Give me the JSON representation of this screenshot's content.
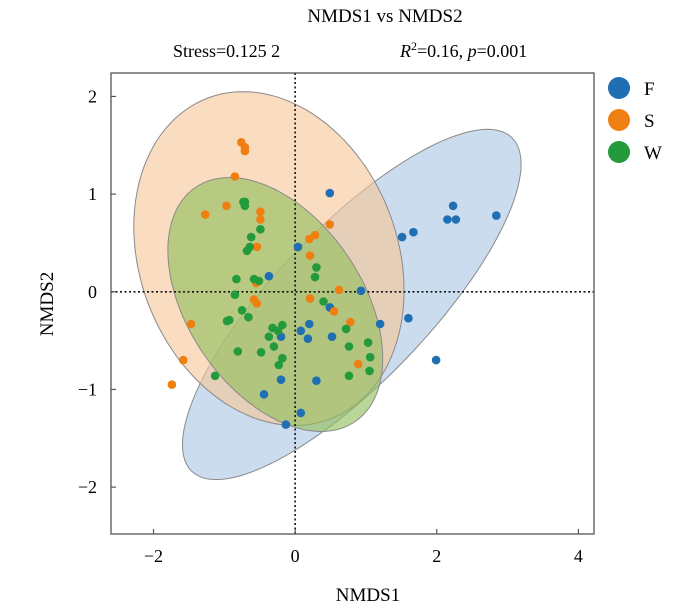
{
  "chart_data": {
    "type": "scatter",
    "title": "NMDS1 vs NMDS2",
    "subtitle": {
      "stress_label": "Stress=0.125 2",
      "stats_r_symbol": "R",
      "stats_r_sup": "2",
      "stats_r_value": "=0.16, ",
      "stats_p_symbol": "p",
      "stats_p_value": "=0.001"
    },
    "xlabel": "NMDS1",
    "ylabel": "NMDS2",
    "xlim": [
      -2.6,
      4.22
    ],
    "ylim": [
      -2.48,
      2.24
    ],
    "xticks": [
      -2,
      0,
      2,
      4
    ],
    "yticks": [
      -2,
      -1,
      0,
      1,
      2
    ],
    "xtick_labels": [
      "−2",
      "0",
      "2",
      "4"
    ],
    "ytick_labels": [
      "−2",
      "−1",
      "0",
      "1",
      "2"
    ],
    "reference_lines": {
      "x": 0,
      "y": 0,
      "style": "dotted"
    },
    "grid": false,
    "legend_position": "right-top",
    "series": [
      {
        "name": "F",
        "color": "#1f6fb2",
        "ellipse": {
          "cx": 0.8,
          "cy": -0.13,
          "a": 2.85,
          "b": 0.9,
          "angle_deg": 35,
          "fill": "#a9c6e2"
        },
        "points": [
          [
            0.49,
            1.01
          ],
          [
            2.23,
            0.88
          ],
          [
            2.15,
            0.74
          ],
          [
            2.27,
            0.74
          ],
          [
            2.84,
            0.78
          ],
          [
            1.51,
            0.56
          ],
          [
            1.67,
            0.61
          ],
          [
            0.04,
            0.46
          ],
          [
            -0.37,
            0.16
          ],
          [
            0.93,
            0.01
          ],
          [
            0.49,
            -0.16
          ],
          [
            1.2,
            -0.33
          ],
          [
            1.6,
            -0.27
          ],
          [
            0.2,
            -0.33
          ],
          [
            0.08,
            -0.4
          ],
          [
            0.18,
            -0.48
          ],
          [
            0.52,
            -0.46
          ],
          [
            -0.2,
            -0.46
          ],
          [
            1.99,
            -0.7
          ],
          [
            -0.2,
            -0.9
          ],
          [
            0.3,
            -0.91
          ],
          [
            -0.44,
            -1.05
          ],
          [
            0.08,
            -1.24
          ],
          [
            -0.13,
            -1.36
          ]
        ]
      },
      {
        "name": "S",
        "color": "#f07f12",
        "ellipse": {
          "cx": -0.37,
          "cy": 0.34,
          "a": 2.0,
          "b": 1.6,
          "angle_deg": 150,
          "fill": "#f7c79a"
        },
        "points": [
          [
            -0.76,
            1.53
          ],
          [
            -0.71,
            1.48
          ],
          [
            -0.71,
            1.44
          ],
          [
            -0.85,
            1.18
          ],
          [
            -0.97,
            0.88
          ],
          [
            -1.27,
            0.79
          ],
          [
            -0.49,
            0.82
          ],
          [
            -0.49,
            0.74
          ],
          [
            -0.54,
            0.46
          ],
          [
            0.49,
            0.69
          ],
          [
            0.28,
            0.58
          ],
          [
            0.2,
            0.54
          ],
          [
            0.21,
            0.37
          ],
          [
            0.62,
            0.02
          ],
          [
            -0.55,
            0.09
          ],
          [
            -0.58,
            -0.08
          ],
          [
            -0.54,
            -0.12
          ],
          [
            0.21,
            -0.07
          ],
          [
            0.55,
            -0.2
          ],
          [
            0.78,
            -0.31
          ],
          [
            -1.47,
            -0.33
          ],
          [
            0.89,
            -0.74
          ],
          [
            -1.58,
            -0.7
          ],
          [
            -1.74,
            -0.95
          ]
        ]
      },
      {
        "name": "W",
        "color": "#239a3b",
        "ellipse": {
          "cx": -0.28,
          "cy": -0.13,
          "a": 1.7,
          "b": 1.05,
          "angle_deg": 145,
          "fill": "#8fbf5a"
        },
        "points": [
          [
            -0.73,
            0.92
          ],
          [
            -0.71,
            0.92
          ],
          [
            -0.71,
            0.88
          ],
          [
            -0.49,
            0.64
          ],
          [
            -0.62,
            0.56
          ],
          [
            -0.64,
            0.46
          ],
          [
            -0.68,
            0.42
          ],
          [
            -0.83,
            0.13
          ],
          [
            -0.58,
            0.13
          ],
          [
            -0.51,
            0.11
          ],
          [
            0.3,
            0.25
          ],
          [
            0.28,
            0.15
          ],
          [
            -0.85,
            -0.03
          ],
          [
            -0.75,
            -0.19
          ],
          [
            -0.66,
            -0.26
          ],
          [
            -0.93,
            -0.29
          ],
          [
            -0.96,
            -0.3
          ],
          [
            0.4,
            -0.1
          ],
          [
            -0.32,
            -0.37
          ],
          [
            -0.18,
            -0.34
          ],
          [
            -0.24,
            -0.4
          ],
          [
            -0.37,
            -0.46
          ],
          [
            -0.3,
            -0.56
          ],
          [
            -0.18,
            -0.68
          ],
          [
            -0.23,
            -0.75
          ],
          [
            -0.81,
            -0.61
          ],
          [
            -0.48,
            -0.62
          ],
          [
            0.72,
            -0.38
          ],
          [
            0.76,
            -0.56
          ],
          [
            1.03,
            -0.52
          ],
          [
            1.06,
            -0.67
          ],
          [
            1.05,
            -0.81
          ],
          [
            0.76,
            -0.86
          ],
          [
            -1.13,
            -0.86
          ]
        ]
      }
    ]
  }
}
